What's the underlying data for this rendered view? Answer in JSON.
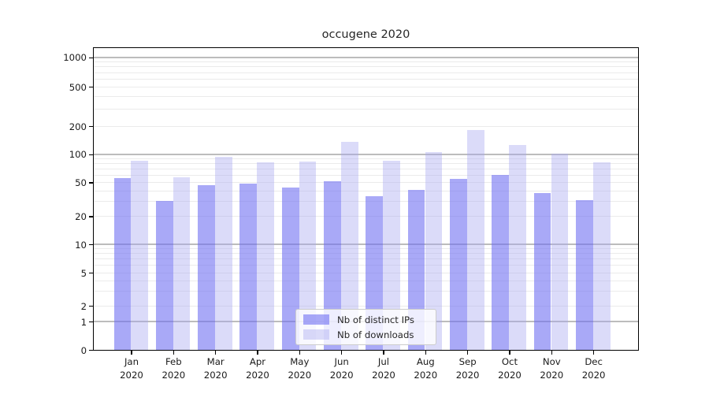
{
  "title": "occugene 2020",
  "chart_data": {
    "type": "bar",
    "title": "occugene 2020",
    "categories": [
      {
        "month": "Jan",
        "year": "2020"
      },
      {
        "month": "Feb",
        "year": "2020"
      },
      {
        "month": "Mar",
        "year": "2020"
      },
      {
        "month": "Apr",
        "year": "2020"
      },
      {
        "month": "May",
        "year": "2020"
      },
      {
        "month": "Jun",
        "year": "2020"
      },
      {
        "month": "Jul",
        "year": "2020"
      },
      {
        "month": "Aug",
        "year": "2020"
      },
      {
        "month": "Sep",
        "year": "2020"
      },
      {
        "month": "Oct",
        "year": "2020"
      },
      {
        "month": "Nov",
        "year": "2020"
      },
      {
        "month": "Dec",
        "year": "2020"
      }
    ],
    "series": [
      {
        "name": "Nb of distinct IPs",
        "color": "rgba(112,112,242,0.6)",
        "values": [
          55,
          30,
          46,
          48,
          43,
          51,
          34,
          41,
          54,
          60,
          37,
          31
        ]
      },
      {
        "name": "Nb of downloads",
        "color": "rgba(165,165,240,0.4)",
        "values": [
          84,
          56,
          93,
          82,
          83,
          135,
          85,
          104,
          180,
          126,
          101,
          81
        ]
      }
    ],
    "yticks": [
      0,
      1,
      2,
      5,
      10,
      20,
      50,
      100,
      200,
      500,
      1000
    ],
    "yscale": "symlog",
    "ylim": [
      0,
      1300
    ],
    "xlabel": "",
    "ylabel": "",
    "grid": true,
    "legend_position": "lower center"
  },
  "colors": {
    "bar_distinct_ips": "rgba(112,112,242,0.6)",
    "bar_downloads": "rgba(165,165,240,0.4)",
    "major_gridline": "#bcbcbc",
    "minor_gridline": "#ebebeb",
    "axis_frame": "#000000",
    "legend_border": "#cccccc"
  }
}
